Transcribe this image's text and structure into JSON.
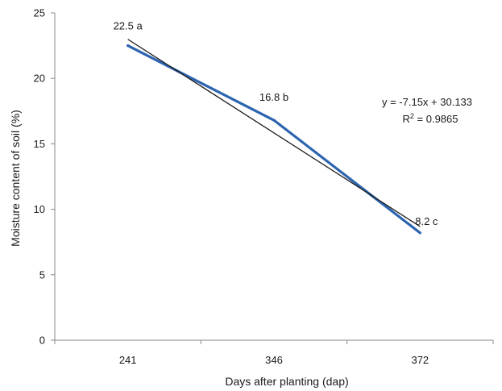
{
  "chart_data": {
    "type": "line",
    "title": "",
    "xlabel": "Days after planting (dap)",
    "ylabel": "Moisture content of soil (%)",
    "categories": [
      "241",
      "346",
      "372"
    ],
    "ylim": [
      0,
      25
    ],
    "yticks": [
      "0",
      "5",
      "10",
      "15",
      "20",
      "25"
    ],
    "grid": false,
    "legend": "none",
    "series": [
      {
        "values": [
          22.5,
          16.8,
          8.2
        ],
        "color": "#2c64b0",
        "point_labels": [
          "22.5 a",
          "16.8 b",
          "8.2 c"
        ]
      }
    ],
    "trendline": {
      "type": "linear",
      "slope": -7.15,
      "intercept": 30.133,
      "color": "#1a1a1a",
      "equation": "y = -7.15x + 30.133",
      "r_squared_prefix": "R",
      "r_squared_sup": "2",
      "r_squared_value": " = 0.9865"
    }
  }
}
